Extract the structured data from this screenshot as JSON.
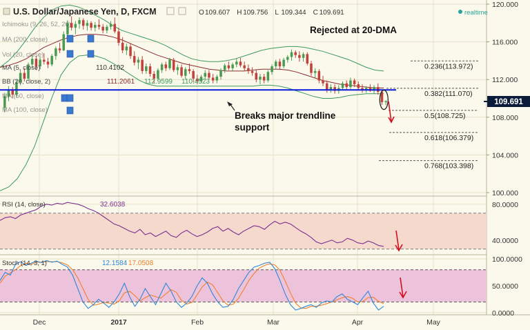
{
  "header": {
    "title": "U.S. Dollar/Japanese Yen, D, FXCM",
    "ohlc": [
      {
        "k": "O",
        "v": "109.607"
      },
      {
        "k": "H",
        "v": "109.756"
      },
      {
        "k": "L",
        "v": "109.344"
      },
      {
        "k": "C",
        "v": "109.691"
      }
    ],
    "status": "realtime",
    "status_color": "#26a69a"
  },
  "indicators": [
    {
      "label": "Ichimoku (9, 26, 52, 26)",
      "values": []
    },
    {
      "label": "MA (200, close)",
      "values": []
    },
    {
      "label": "Vol (20, close)",
      "values": []
    },
    {
      "label": "MA (5, close)",
      "values": [
        "110.4102"
      ]
    },
    {
      "label": "BB (20, close, 2)",
      "values": [
        "111.2061",
        "112.9599",
        "110.4523"
      ]
    },
    {
      "label": "MA (50, close)",
      "values": []
    },
    {
      "label": "MA (100, close)",
      "values": []
    }
  ],
  "annotations": {
    "rejected": "Rejected at 20-DMA",
    "breaks_line1": "Breaks major trendline",
    "breaks_line2": "support"
  },
  "colors": {
    "background": "#fbf9ec",
    "grid": "#e6e1c8",
    "bull": "#4c9a52",
    "bear": "#c0423b",
    "bb": "#3c9a5c",
    "ma": "#8a2d2d",
    "trendline": "#0a1adc",
    "fib": "#555555",
    "rsi": "#7b2f8f",
    "rsi_band": "#f5d9cc",
    "stoch_k": "#2f86d8",
    "stoch_d": "#f08030",
    "stoch_band": "#ecc3da",
    "arrow": "#d01020",
    "price_tag": "#0b1b3a"
  },
  "chart_data": [
    {
      "type": "candlestick",
      "title": "U.S. Dollar/Japanese Yen, D, FXCM",
      "x_ticks": [
        "Dec",
        "2017",
        "Feb",
        "Mar",
        "Apr",
        "May"
      ],
      "y_ticks": [
        "120.000",
        "116.000",
        "112.000",
        "108.000",
        "104.000",
        "100.000"
      ],
      "ylim": [
        100,
        120
      ],
      "last_price": "109.691",
      "candles": [
        {
          "o": 109.0,
          "h": 110.6,
          "l": 108.5,
          "c": 110.2
        },
        {
          "o": 110.2,
          "h": 111.3,
          "l": 109.7,
          "c": 110.9
        },
        {
          "o": 110.9,
          "h": 111.2,
          "l": 110.0,
          "c": 110.4
        },
        {
          "o": 110.4,
          "h": 112.0,
          "l": 110.1,
          "c": 111.7
        },
        {
          "o": 111.7,
          "h": 113.0,
          "l": 111.4,
          "c": 112.7
        },
        {
          "o": 112.7,
          "h": 113.2,
          "l": 111.8,
          "c": 112.1
        },
        {
          "o": 112.1,
          "h": 113.8,
          "l": 111.9,
          "c": 113.6
        },
        {
          "o": 113.6,
          "h": 114.6,
          "l": 113.2,
          "c": 114.2
        },
        {
          "o": 114.2,
          "h": 114.5,
          "l": 113.0,
          "c": 113.4
        },
        {
          "o": 113.4,
          "h": 114.4,
          "l": 113.1,
          "c": 114.1
        },
        {
          "o": 114.1,
          "h": 114.8,
          "l": 113.6,
          "c": 113.9
        },
        {
          "o": 113.9,
          "h": 114.3,
          "l": 113.2,
          "c": 113.6
        },
        {
          "o": 113.6,
          "h": 114.7,
          "l": 113.4,
          "c": 114.5
        },
        {
          "o": 114.5,
          "h": 115.5,
          "l": 114.1,
          "c": 115.3
        },
        {
          "o": 115.3,
          "h": 115.9,
          "l": 114.8,
          "c": 115.1
        },
        {
          "o": 115.1,
          "h": 117.1,
          "l": 115.0,
          "c": 116.8
        },
        {
          "o": 116.8,
          "h": 118.3,
          "l": 116.6,
          "c": 118.0
        },
        {
          "o": 118.0,
          "h": 118.7,
          "l": 117.2,
          "c": 117.5
        },
        {
          "o": 117.5,
          "h": 118.2,
          "l": 116.8,
          "c": 117.9
        },
        {
          "o": 117.9,
          "h": 118.6,
          "l": 117.4,
          "c": 118.3
        },
        {
          "o": 118.3,
          "h": 118.5,
          "l": 117.3,
          "c": 117.7
        },
        {
          "o": 117.7,
          "h": 118.3,
          "l": 117.2,
          "c": 118.0
        },
        {
          "o": 118.0,
          "h": 118.2,
          "l": 117.2,
          "c": 117.5
        },
        {
          "o": 117.5,
          "h": 118.1,
          "l": 117.1,
          "c": 117.8
        },
        {
          "o": 117.8,
          "h": 118.4,
          "l": 117.3,
          "c": 117.6
        },
        {
          "o": 117.6,
          "h": 117.9,
          "l": 116.9,
          "c": 117.2
        },
        {
          "o": 117.2,
          "h": 117.8,
          "l": 116.9,
          "c": 117.6
        },
        {
          "o": 117.6,
          "h": 118.2,
          "l": 117.3,
          "c": 117.9
        },
        {
          "o": 117.9,
          "h": 118.6,
          "l": 116.9,
          "c": 117.1
        },
        {
          "o": 117.1,
          "h": 117.5,
          "l": 115.6,
          "c": 115.9
        },
        {
          "o": 115.9,
          "h": 116.5,
          "l": 114.8,
          "c": 115.1
        },
        {
          "o": 115.1,
          "h": 115.8,
          "l": 114.6,
          "c": 115.5
        },
        {
          "o": 115.5,
          "h": 115.8,
          "l": 114.2,
          "c": 114.5
        },
        {
          "o": 114.5,
          "h": 115.0,
          "l": 113.5,
          "c": 113.8
        },
        {
          "o": 113.8,
          "h": 114.4,
          "l": 113.1,
          "c": 114.1
        },
        {
          "o": 114.1,
          "h": 114.5,
          "l": 112.6,
          "c": 112.9
        },
        {
          "o": 112.9,
          "h": 113.7,
          "l": 112.6,
          "c": 113.4
        },
        {
          "o": 113.4,
          "h": 113.7,
          "l": 112.3,
          "c": 112.6
        },
        {
          "o": 112.6,
          "h": 112.9,
          "l": 111.6,
          "c": 112.1
        },
        {
          "o": 112.1,
          "h": 113.2,
          "l": 111.9,
          "c": 113.0
        },
        {
          "o": 113.0,
          "h": 113.8,
          "l": 112.7,
          "c": 113.6
        },
        {
          "o": 113.6,
          "h": 113.9,
          "l": 112.9,
          "c": 113.2
        },
        {
          "o": 113.2,
          "h": 114.3,
          "l": 113.0,
          "c": 114.1
        },
        {
          "o": 114.1,
          "h": 114.3,
          "l": 112.8,
          "c": 113.0
        },
        {
          "o": 113.0,
          "h": 113.6,
          "l": 112.5,
          "c": 113.3
        },
        {
          "o": 113.3,
          "h": 113.6,
          "l": 112.2,
          "c": 112.4
        },
        {
          "o": 112.4,
          "h": 113.3,
          "l": 112.0,
          "c": 113.1
        },
        {
          "o": 113.1,
          "h": 113.7,
          "l": 112.6,
          "c": 112.9
        },
        {
          "o": 112.9,
          "h": 113.1,
          "l": 111.7,
          "c": 112.1
        },
        {
          "o": 112.1,
          "h": 112.5,
          "l": 111.5,
          "c": 111.8
        },
        {
          "o": 111.8,
          "h": 112.5,
          "l": 111.6,
          "c": 112.3
        },
        {
          "o": 112.3,
          "h": 113.0,
          "l": 112.0,
          "c": 112.7
        },
        {
          "o": 112.7,
          "h": 113.0,
          "l": 112.0,
          "c": 112.2
        },
        {
          "o": 112.2,
          "h": 112.6,
          "l": 111.6,
          "c": 111.9
        },
        {
          "o": 111.9,
          "h": 112.5,
          "l": 111.6,
          "c": 112.3
        },
        {
          "o": 112.3,
          "h": 113.2,
          "l": 112.0,
          "c": 113.0
        },
        {
          "o": 113.0,
          "h": 113.7,
          "l": 112.7,
          "c": 113.5
        },
        {
          "o": 113.5,
          "h": 113.9,
          "l": 113.0,
          "c": 113.2
        },
        {
          "o": 113.2,
          "h": 113.8,
          "l": 112.9,
          "c": 113.6
        },
        {
          "o": 113.6,
          "h": 114.2,
          "l": 113.3,
          "c": 113.9
        },
        {
          "o": 113.9,
          "h": 114.3,
          "l": 113.3,
          "c": 113.5
        },
        {
          "o": 113.5,
          "h": 113.9,
          "l": 112.9,
          "c": 113.2
        },
        {
          "o": 113.2,
          "h": 113.6,
          "l": 112.6,
          "c": 112.9
        },
        {
          "o": 112.9,
          "h": 113.3,
          "l": 112.4,
          "c": 112.7
        },
        {
          "o": 112.7,
          "h": 113.0,
          "l": 111.7,
          "c": 112.0
        },
        {
          "o": 112.0,
          "h": 112.6,
          "l": 111.5,
          "c": 112.3
        },
        {
          "o": 112.3,
          "h": 112.6,
          "l": 111.6,
          "c": 111.9
        },
        {
          "o": 111.9,
          "h": 113.0,
          "l": 111.7,
          "c": 112.8
        },
        {
          "o": 112.8,
          "h": 113.6,
          "l": 112.5,
          "c": 113.4
        },
        {
          "o": 113.4,
          "h": 114.1,
          "l": 113.1,
          "c": 113.9
        },
        {
          "o": 113.9,
          "h": 114.2,
          "l": 113.1,
          "c": 113.4
        },
        {
          "o": 113.4,
          "h": 114.3,
          "l": 113.2,
          "c": 114.1
        },
        {
          "o": 114.1,
          "h": 114.6,
          "l": 113.8,
          "c": 114.4
        },
        {
          "o": 114.4,
          "h": 115.2,
          "l": 114.0,
          "c": 114.9
        },
        {
          "o": 114.9,
          "h": 115.1,
          "l": 114.3,
          "c": 114.6
        },
        {
          "o": 114.6,
          "h": 115.0,
          "l": 113.9,
          "c": 114.3
        },
        {
          "o": 114.3,
          "h": 114.9,
          "l": 113.9,
          "c": 114.7
        },
        {
          "o": 114.7,
          "h": 114.9,
          "l": 113.5,
          "c": 113.7
        },
        {
          "o": 113.7,
          "h": 114.0,
          "l": 112.4,
          "c": 112.7
        },
        {
          "o": 112.7,
          "h": 113.2,
          "l": 112.2,
          "c": 112.9
        },
        {
          "o": 112.9,
          "h": 113.1,
          "l": 111.6,
          "c": 111.9
        },
        {
          "o": 111.9,
          "h": 112.4,
          "l": 111.3,
          "c": 111.6
        },
        {
          "o": 111.6,
          "h": 111.9,
          "l": 110.6,
          "c": 110.9
        },
        {
          "o": 110.9,
          "h": 111.5,
          "l": 110.6,
          "c": 111.2
        },
        {
          "o": 111.2,
          "h": 111.5,
          "l": 110.5,
          "c": 110.8
        },
        {
          "o": 110.8,
          "h": 111.4,
          "l": 110.5,
          "c": 111.1
        },
        {
          "o": 111.1,
          "h": 111.8,
          "l": 110.9,
          "c": 111.6
        },
        {
          "o": 111.6,
          "h": 111.9,
          "l": 110.9,
          "c": 111.2
        },
        {
          "o": 111.2,
          "h": 112.2,
          "l": 111.0,
          "c": 111.9
        },
        {
          "o": 111.9,
          "h": 112.1,
          "l": 111.2,
          "c": 111.5
        },
        {
          "o": 111.5,
          "h": 111.8,
          "l": 110.9,
          "c": 111.1
        },
        {
          "o": 111.1,
          "h": 111.5,
          "l": 110.6,
          "c": 110.9
        },
        {
          "o": 110.9,
          "h": 111.3,
          "l": 110.6,
          "c": 111.1
        },
        {
          "o": 111.1,
          "h": 111.5,
          "l": 110.7,
          "c": 110.8
        },
        {
          "o": 110.8,
          "h": 111.4,
          "l": 110.5,
          "c": 111.2
        },
        {
          "o": 111.2,
          "h": 111.6,
          "l": 110.4,
          "c": 110.7
        },
        {
          "o": 110.7,
          "h": 110.9,
          "l": 109.3,
          "c": 109.6
        },
        {
          "o": 109.6,
          "h": 109.8,
          "l": 109.3,
          "c": 109.7
        }
      ],
      "ma20": [
        113.3,
        113.5,
        113.8,
        114.2,
        114.8,
        115.4,
        115.8,
        116.2,
        116.5,
        116.7,
        116.8,
        116.8,
        116.7,
        116.5,
        116.2,
        115.8,
        115.4,
        115.0,
        114.6,
        114.3,
        114.0,
        113.7,
        113.5,
        113.3,
        113.1,
        113.0,
        112.9,
        112.9,
        112.9,
        113.0,
        113.1,
        113.1,
        113.1,
        113.0,
        112.8,
        112.5,
        112.2,
        111.9,
        111.7,
        111.5,
        111.4,
        111.3,
        111.2,
        111.1,
        111.1
      ],
      "bb_upper": [
        113.3,
        114.0,
        115.0,
        116.2,
        117.5,
        118.6,
        119.4,
        119.8,
        119.9,
        119.7,
        119.3,
        118.8,
        118.3,
        117.7,
        117.2,
        116.9,
        116.6,
        116.3,
        116.0,
        115.6,
        115.1,
        114.6,
        114.2,
        114.0,
        113.9,
        113.9,
        114.0,
        114.2,
        114.5,
        114.8,
        115.1,
        115.3,
        115.4,
        115.5,
        115.5,
        115.4,
        115.2,
        115.0,
        114.7,
        114.4,
        114.1,
        113.7,
        113.3,
        113.0,
        112.9
      ],
      "bb_lower": [
        100.2,
        100.6,
        101.5,
        103.0,
        105.0,
        107.6,
        110.2,
        112.5,
        113.8,
        114.5,
        114.6,
        114.5,
        114.2,
        113.7,
        113.1,
        112.5,
        111.9,
        111.5,
        111.3,
        111.3,
        111.3,
        111.3,
        111.3,
        111.3,
        111.3,
        111.3,
        111.3,
        111.3,
        111.3,
        111.3,
        111.4,
        111.4,
        111.3,
        111.1,
        110.8,
        110.5,
        110.2,
        110.0,
        110.0,
        110.1,
        110.3,
        110.4,
        110.5,
        110.5,
        110.5
      ],
      "trendline": 110.9,
      "fib_levels": [
        {
          "label": "0.236(113.972)",
          "value": 113.972
        },
        {
          "label": "0.382(111.070)",
          "value": 111.07
        },
        {
          "label": "0.5(108.725)",
          "value": 108.725
        },
        {
          "label": "0.618(106.379)",
          "value": 106.379
        },
        {
          "label": "0.768(103.398)",
          "value": 103.398
        }
      ]
    },
    {
      "type": "line",
      "title": "RSI (14, close)",
      "last_value": "32.6038",
      "y_ticks": [
        "80.0000",
        "40.0000"
      ],
      "ylim": [
        26,
        86
      ],
      "bands": [
        70,
        30
      ],
      "values": [
        62,
        65,
        66,
        64,
        68,
        70,
        72,
        74,
        78,
        80,
        79,
        81,
        80,
        82,
        81,
        80,
        78,
        75,
        73,
        70,
        66,
        62,
        58,
        56,
        53,
        50,
        48,
        52,
        46,
        48,
        44,
        47,
        50,
        45,
        43,
        48,
        51,
        47,
        44,
        46,
        49,
        53,
        55,
        50,
        53,
        49,
        46,
        50,
        53,
        56,
        55,
        52,
        57,
        61,
        58,
        60,
        58,
        54,
        50,
        47,
        43,
        38,
        36,
        38,
        40,
        37,
        38,
        42,
        40,
        37,
        36,
        39,
        37,
        34,
        33
      ]
    },
    {
      "type": "line",
      "title": "Stoch (14, 3, 1)",
      "last_value_k": "12.1584",
      "last_value_d": "17.0508",
      "y_ticks": [
        "100.0000",
        "50.0000",
        "0.0000"
      ],
      "ylim": [
        0,
        104
      ],
      "bands": [
        80,
        20
      ],
      "series": [
        {
          "name": "",
          "values": [
            60,
            75,
            70,
            90,
            95,
            88,
            92,
            96,
            93,
            97,
            94,
            96,
            90,
            85,
            70,
            45,
            20,
            8,
            15,
            25,
            18,
            10,
            20,
            35,
            55,
            30,
            12,
            25,
            45,
            30,
            15,
            35,
            55,
            40,
            20,
            10,
            18,
            30,
            50,
            65,
            55,
            35,
            20,
            10,
            12,
            25,
            45,
            60,
            75,
            85,
            88,
            92,
            94,
            82,
            60,
            35,
            15,
            5,
            8,
            12,
            15,
            10,
            18,
            22,
            20,
            30,
            35,
            25,
            20,
            15,
            28,
            40,
            18,
            5,
            12
          ]
        },
        {
          "name": "",
          "values": [
            55,
            68,
            74,
            80,
            88,
            92,
            90,
            94,
            94,
            95,
            95,
            95,
            93,
            89,
            80,
            65,
            45,
            25,
            14,
            16,
            19,
            18,
            16,
            22,
            37,
            40,
            32,
            22,
            28,
            33,
            30,
            27,
            35,
            43,
            38,
            23,
            16,
            19,
            33,
            48,
            57,
            52,
            37,
            22,
            14,
            16,
            27,
            43,
            60,
            73,
            83,
            88,
            91,
            89,
            79,
            59,
            37,
            18,
            9,
            8,
            12,
            12,
            14,
            17,
            20,
            24,
            28,
            30,
            27,
            20,
            21,
            28,
            29,
            21,
            17
          ]
        }
      ]
    }
  ]
}
